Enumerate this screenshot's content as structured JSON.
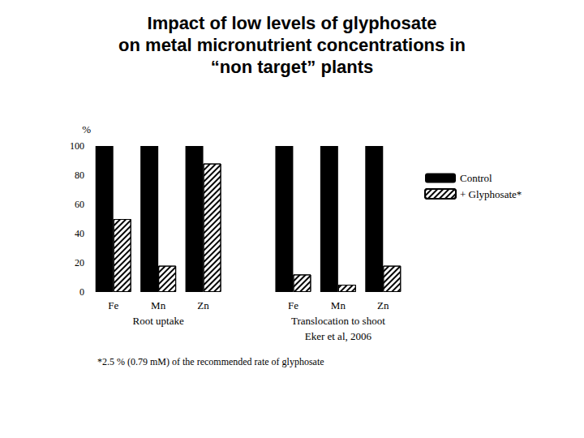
{
  "chart_data": {
    "type": "bar",
    "title": "Impact of low levels of glyphosate\non metal micronutrient concentrations in\n“non target” plants",
    "ylabel": "%",
    "categories": [
      "Fe",
      "Mn",
      "Zn",
      null,
      "Fe",
      "Mn",
      "Zn"
    ],
    "group_labels": [
      "Root uptake",
      "Translocation to shoot"
    ],
    "series": [
      {
        "name": "Control",
        "color": "#000000",
        "values": [
          100,
          100,
          100,
          null,
          100,
          100,
          100
        ]
      },
      {
        "name": "+ Glyphosate*",
        "color": "#000000",
        "values": [
          50,
          18,
          88,
          null,
          12,
          5,
          18
        ]
      }
    ],
    "source": "Eker et al, 2006",
    "footnote": "*2.5 % (0.79 mM) of the recommended rate of glyphosate",
    "ylim": [
      0,
      100
    ],
    "yticks": [
      0,
      20,
      40,
      60,
      80,
      100
    ],
    "grid": false,
    "legend": "right"
  }
}
